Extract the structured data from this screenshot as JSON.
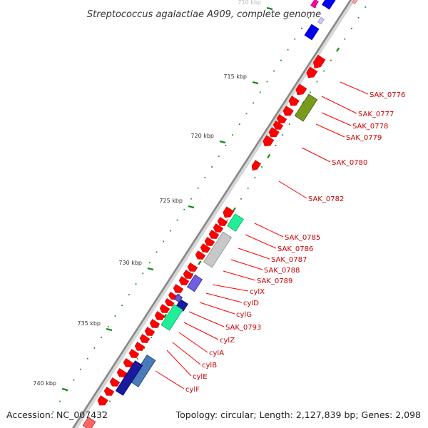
{
  "title": "Streptococcus agalactiae A909, complete genome",
  "colors": {
    "backbone": "#8a8a8a",
    "gene": "#ff0000",
    "label": "#cc0000",
    "tick": "#1a8a1a",
    "dot": "#2a8a2a"
  },
  "scale": {
    "unit": "kbp",
    "labeled_ticks": [
      {
        "kbp": 710,
        "label": "710 kbp"
      },
      {
        "kbp": 715,
        "label": "715 kbp"
      },
      {
        "kbp": 720,
        "label": "720 kbp"
      },
      {
        "kbp": 725,
        "label": "725 kbp"
      },
      {
        "kbp": 730,
        "label": "730 kbp"
      },
      {
        "kbp": 735,
        "label": "735 kbp"
      },
      {
        "kbp": 740,
        "label": "740 kbp"
      }
    ]
  },
  "gene_labels": [
    "SAK_0776",
    "SAK_0777",
    "SAK_0778",
    "SAK_0779",
    "SAK_0780",
    "SAK_0782",
    "SAK_0785",
    "SAK_0786",
    "SAK_0787",
    "SAK_0788",
    "SAK_0789",
    "cylX",
    "cylD",
    "cylG",
    "SAK_0793",
    "cylZ",
    "cylA",
    "cylB",
    "cylE",
    "cylF"
  ],
  "footer": {
    "accession": "Accession: NC_007432",
    "summary": "Topology: circular; Length: 2,127,839 bp; Genes: 2,098"
  }
}
